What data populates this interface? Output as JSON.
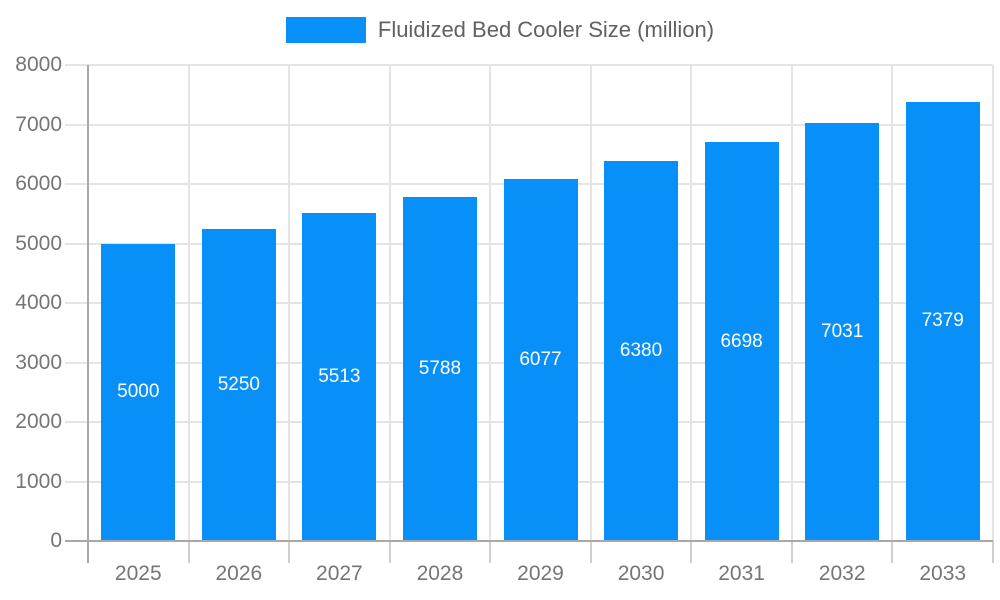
{
  "legend": {
    "label": "Fluidized Bed Cooler Size (million)"
  },
  "chart_data": {
    "type": "bar",
    "title": "Fluidized Bed Cooler Size (million)",
    "categories": [
      "2025",
      "2026",
      "2027",
      "2028",
      "2029",
      "2030",
      "2031",
      "2032",
      "2033"
    ],
    "values": [
      5000,
      5250,
      5513,
      5788,
      6077,
      6380,
      6698,
      7031,
      7379
    ],
    "xlabel": "",
    "ylabel": "",
    "ylim": [
      0,
      8000
    ],
    "ytick_step": 1000,
    "yticks": [
      0,
      1000,
      2000,
      3000,
      4000,
      5000,
      6000,
      7000,
      8000
    ],
    "grid": true,
    "legend_position": "top-center",
    "value_labels": "inside-center",
    "colors": {
      "bar": "#0890f8",
      "grid": "#e4e4e4",
      "axis": "#a8a8a8",
      "bottom_tick": "#cfcfcf",
      "tick_text": "#757575",
      "legend_text": "#616161",
      "value_label": "#ffffff",
      "background": "#ffffff"
    }
  }
}
